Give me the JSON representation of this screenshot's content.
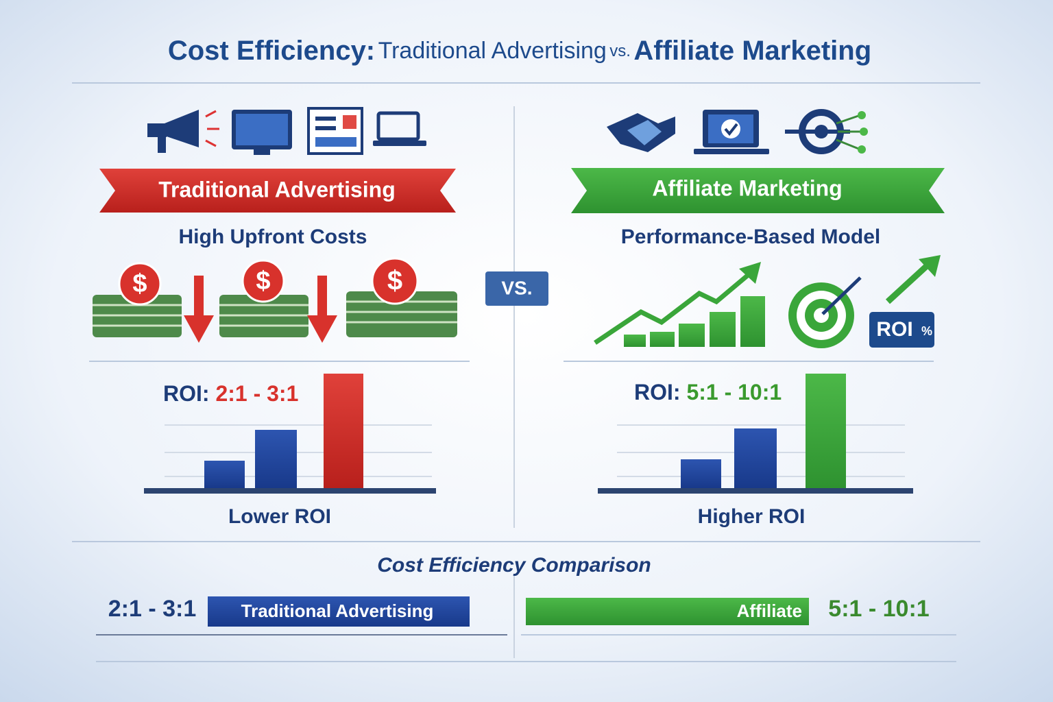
{
  "header": {
    "title": {
      "part1": "Cost Efficiency:",
      "part2": "Traditional Advertising",
      "part3": "vs.",
      "part4": "Affiliate Marketing"
    }
  },
  "vs_badge": "VS.",
  "left": {
    "banner": "Traditional Advertising",
    "subtitle": "High Upfront Costs",
    "money_symbol": "$",
    "roi_label": "ROI:",
    "roi_value": "2:1 - 3:1",
    "footer": "Lower ROI"
  },
  "right": {
    "banner": "Affiliate Marketing",
    "subtitle": "Performance-Based Model",
    "badge_text": "ROI",
    "badge_symbol": "%",
    "roi_label": "ROI:",
    "roi_value": "5:1 - 10:1",
    "footer": "Higher ROI"
  },
  "comparison": {
    "title": "Cost Efficiency Comparison",
    "left_value": "2:1 - 3:1",
    "left_bar": "Traditional Advertising",
    "right_bar": "Affiliate",
    "right_value": "5:1 - 10:1"
  }
}
